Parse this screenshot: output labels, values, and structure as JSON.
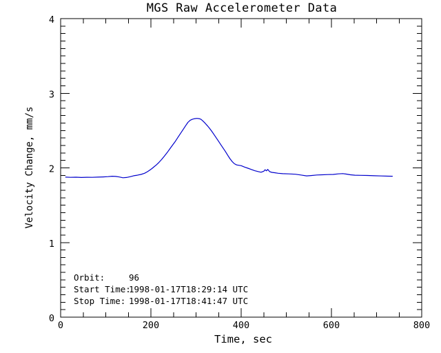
{
  "title": "MGS Raw Accelerometer Data",
  "colors": {
    "background": "#ffffff",
    "axis": "#000000",
    "text": "#000000",
    "line": "#0000cc"
  },
  "annotations": {
    "rows": [
      {
        "label": "Orbit:",
        "value": "96"
      },
      {
        "label": "Start Time:",
        "value": "1998-01-17T18:29:14 UTC"
      },
      {
        "label": "Stop Time:",
        "value": "1998-01-17T18:41:47 UTC"
      }
    ]
  },
  "chart_data": {
    "type": "line",
    "title": "MGS Raw Accelerometer Data",
    "xlabel": "Time, sec",
    "ylabel": "Velocity Change, mm/s",
    "xlim": [
      0,
      800
    ],
    "ylim": [
      0,
      4
    ],
    "grid": false,
    "legend": "none",
    "x_major_ticks": [
      0,
      200,
      400,
      600,
      800
    ],
    "x_tick_labels": [
      "0",
      "200",
      "400",
      "600",
      "800"
    ],
    "x_minor_interval": 50,
    "y_major_ticks": [
      0,
      1,
      2,
      3,
      4
    ],
    "y_tick_labels": [
      "0",
      "1",
      "2",
      "3",
      "4"
    ],
    "y_minor_interval": 0.1,
    "series": [
      {
        "name": "velocity-change",
        "color": "#0000cc",
        "points": [
          [
            11,
            1.876
          ],
          [
            22,
            1.873
          ],
          [
            34,
            1.875
          ],
          [
            46,
            1.872
          ],
          [
            58,
            1.874
          ],
          [
            70,
            1.873
          ],
          [
            82,
            1.876
          ],
          [
            94,
            1.879
          ],
          [
            105,
            1.883
          ],
          [
            114,
            1.888
          ],
          [
            122,
            1.885
          ],
          [
            130,
            1.878
          ],
          [
            138,
            1.868
          ],
          [
            146,
            1.872
          ],
          [
            154,
            1.882
          ],
          [
            162,
            1.895
          ],
          [
            170,
            1.902
          ],
          [
            178,
            1.912
          ],
          [
            186,
            1.928
          ],
          [
            192,
            1.948
          ],
          [
            197,
            1.968
          ],
          [
            202,
            1.99
          ],
          [
            207,
            2.015
          ],
          [
            212,
            2.04
          ],
          [
            218,
            2.075
          ],
          [
            224,
            2.115
          ],
          [
            230,
            2.16
          ],
          [
            236,
            2.205
          ],
          [
            242,
            2.255
          ],
          [
            248,
            2.305
          ],
          [
            254,
            2.355
          ],
          [
            260,
            2.41
          ],
          [
            266,
            2.465
          ],
          [
            272,
            2.52
          ],
          [
            277,
            2.565
          ],
          [
            282,
            2.61
          ],
          [
            287,
            2.638
          ],
          [
            292,
            2.652
          ],
          [
            297,
            2.66
          ],
          [
            302,
            2.663
          ],
          [
            307,
            2.66
          ],
          [
            311,
            2.65
          ],
          [
            315,
            2.63
          ],
          [
            320,
            2.6
          ],
          [
            325,
            2.565
          ],
          [
            330,
            2.53
          ],
          [
            335,
            2.49
          ],
          [
            340,
            2.445
          ],
          [
            345,
            2.4
          ],
          [
            350,
            2.355
          ],
          [
            355,
            2.31
          ],
          [
            360,
            2.265
          ],
          [
            365,
            2.22
          ],
          [
            370,
            2.17
          ],
          [
            375,
            2.125
          ],
          [
            380,
            2.085
          ],
          [
            385,
            2.055
          ],
          [
            390,
            2.04
          ],
          [
            400,
            2.03
          ],
          [
            408,
            2.01
          ],
          [
            415,
            1.995
          ],
          [
            422,
            1.98
          ],
          [
            430,
            1.962
          ],
          [
            438,
            1.95
          ],
          [
            444,
            1.942
          ],
          [
            450,
            1.955
          ],
          [
            453,
            1.975
          ],
          [
            456,
            1.96
          ],
          [
            459,
            1.98
          ],
          [
            463,
            1.95
          ],
          [
            468,
            1.94
          ],
          [
            474,
            1.935
          ],
          [
            482,
            1.928
          ],
          [
            492,
            1.922
          ],
          [
            505,
            1.92
          ],
          [
            520,
            1.915
          ],
          [
            532,
            1.905
          ],
          [
            545,
            1.893
          ],
          [
            555,
            1.897
          ],
          [
            568,
            1.905
          ],
          [
            580,
            1.908
          ],
          [
            592,
            1.91
          ],
          [
            604,
            1.912
          ],
          [
            615,
            1.92
          ],
          [
            625,
            1.923
          ],
          [
            633,
            1.917
          ],
          [
            642,
            1.908
          ],
          [
            652,
            1.902
          ],
          [
            665,
            1.9
          ],
          [
            680,
            1.898
          ],
          [
            695,
            1.895
          ],
          [
            710,
            1.892
          ],
          [
            725,
            1.889
          ],
          [
            735,
            1.888
          ]
        ]
      }
    ]
  }
}
